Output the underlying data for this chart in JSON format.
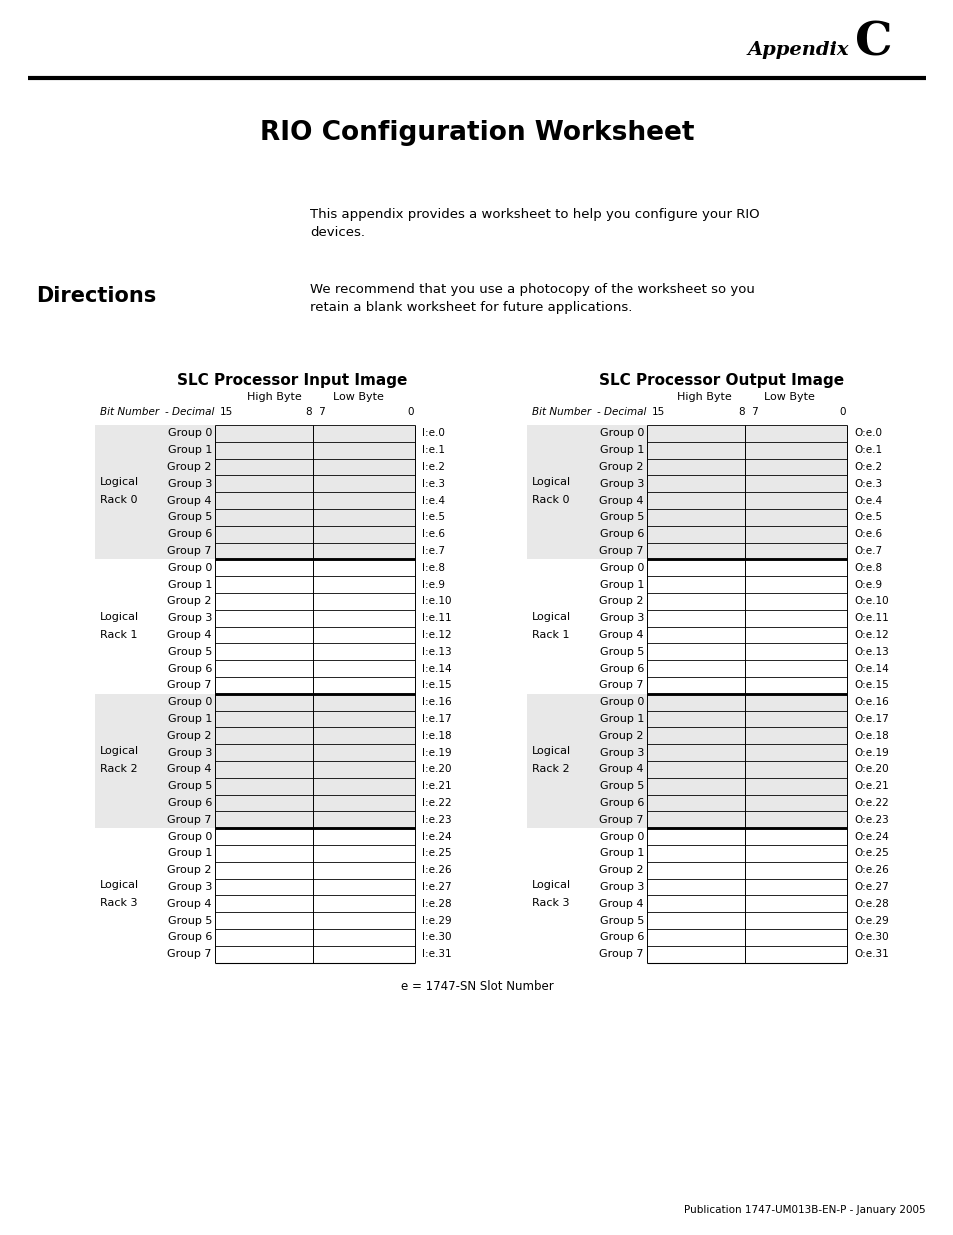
{
  "appendix_text": "Appendix",
  "appendix_letter": "C",
  "title": "RIO Configuration Worksheet",
  "intro_text": "This appendix provides a worksheet to help you configure your RIO\ndevices.",
  "directions_heading": "Directions",
  "directions_text": "We recommend that you use a photocopy of the worksheet so you\nretain a blank worksheet for future applications.",
  "input_table_title": "SLC Processor Input Image",
  "output_table_title": "SLC Processor Output Image",
  "high_byte_label": "High Byte",
  "low_byte_label": "Low Byte",
  "bit_number_label": "Bit Number",
  "decimal_label": "- Decimal",
  "racks": [
    "Rack 0",
    "Rack 1",
    "Rack 2",
    "Rack 3"
  ],
  "groups": [
    "Group 0",
    "Group 1",
    "Group 2",
    "Group 3",
    "Group 4",
    "Group 5",
    "Group 6",
    "Group 7"
  ],
  "input_labels": [
    "I:e.0",
    "I:e.1",
    "I:e.2",
    "I:e.3",
    "I:e.4",
    "I:e.5",
    "I:e.6",
    "I:e.7",
    "I:e.8",
    "I:e.9",
    "I:e.10",
    "I:e.11",
    "I:e.12",
    "I:e.13",
    "I:e.14",
    "I:e.15",
    "I:e.16",
    "I:e.17",
    "I:e.18",
    "I:e.19",
    "I:e.20",
    "I:e.21",
    "I:e.22",
    "I:e.23",
    "I:e.24",
    "I:e.25",
    "I:e.26",
    "I:e.27",
    "I:e.28",
    "I:e.29",
    "I:e.30",
    "I:e.31"
  ],
  "output_labels": [
    "O:e.0",
    "O:e.1",
    "O:e.2",
    "O:e.3",
    "O:e.4",
    "O:e.5",
    "O:e.6",
    "O:e.7",
    "O:e.8",
    "O:e.9",
    "O:e.10",
    "O:e.11",
    "O:e.12",
    "O:e.13",
    "O:e.14",
    "O:e.15",
    "O:e.16",
    "O:e.17",
    "O:e.18",
    "O:e.19",
    "O:e.20",
    "O:e.21",
    "O:e.22",
    "O:e.23",
    "O:e.24",
    "O:e.25",
    "O:e.26",
    "O:e.27",
    "O:e.28",
    "O:e.29",
    "O:e.30",
    "O:e.31"
  ],
  "footnote": "e = 1747-SN Slot Number",
  "publication": "Publication 1747-UM013B-EN-P - January 2005",
  "bg_color": "#ffffff",
  "rack_shade_color": "#e8e8e8",
  "table_line_color": "#000000"
}
